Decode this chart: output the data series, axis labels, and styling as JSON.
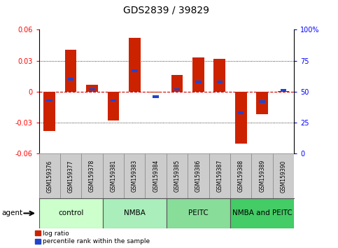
{
  "title": "GDS2839 / 39829",
  "samples": [
    "GSM159376",
    "GSM159377",
    "GSM159378",
    "GSM159381",
    "GSM159383",
    "GSM159384",
    "GSM159385",
    "GSM159386",
    "GSM159387",
    "GSM159388",
    "GSM159389",
    "GSM159390"
  ],
  "log_ratios": [
    -0.038,
    0.041,
    0.007,
    -0.028,
    0.052,
    -0.001,
    0.016,
    0.033,
    0.032,
    -0.05,
    -0.022,
    0.001
  ],
  "percentile_ranks": [
    43,
    60,
    52,
    43,
    67,
    46,
    52,
    58,
    58,
    33,
    42,
    51
  ],
  "groups": [
    {
      "label": "control",
      "start": 0,
      "end": 3
    },
    {
      "label": "NMBA",
      "start": 3,
      "end": 6
    },
    {
      "label": "PEITC",
      "start": 6,
      "end": 9
    },
    {
      "label": "NMBA and PEITC",
      "start": 9,
      "end": 12
    }
  ],
  "group_colors": [
    "#ccffcc",
    "#aaeebb",
    "#88dd99",
    "#44cc66"
  ],
  "ylim": [
    -0.06,
    0.06
  ],
  "yticks_left": [
    -0.06,
    -0.03,
    0.0,
    0.03,
    0.06
  ],
  "yticks_right": [
    0,
    25,
    50,
    75,
    100
  ],
  "bar_color_red": "#cc2200",
  "bar_color_blue": "#2244cc",
  "plot_bg": "#ffffff",
  "zero_line_color": "#cc0000",
  "bar_width": 0.55,
  "percentile_bar_width": 0.28,
  "percentile_bar_height": 0.0025,
  "sample_cell_color": "#cccccc",
  "title_fontsize": 10,
  "tick_fontsize": 7,
  "sample_fontsize": 5.5,
  "group_fontsize": 7.5,
  "legend_fontsize": 6.5
}
